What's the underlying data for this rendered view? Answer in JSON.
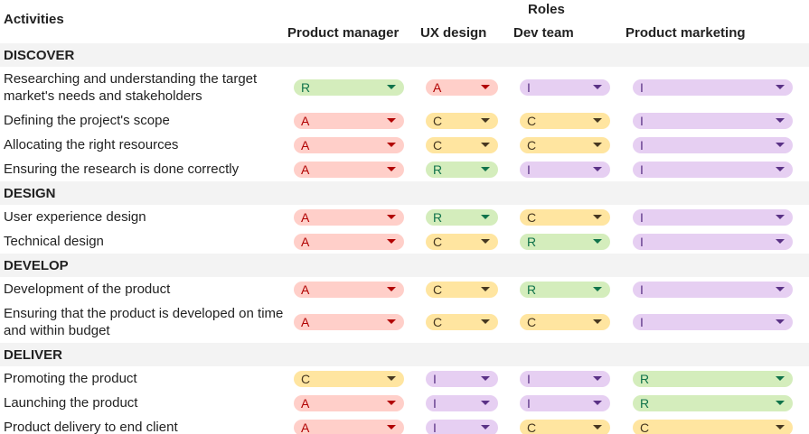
{
  "header": {
    "activities": "Activities",
    "roles": "Roles",
    "role_names": [
      "Product manager",
      "UX design",
      "Dev team",
      "Product marketing"
    ]
  },
  "chip_colors": {
    "R": {
      "bg": "#d4edbc",
      "fg": "#11734b"
    },
    "A": {
      "bg": "#ffcfc9",
      "fg": "#b10202"
    },
    "C": {
      "bg": "#ffe5a0",
      "fg": "#473821"
    },
    "I": {
      "bg": "#e6cff2",
      "fg": "#5a3286"
    }
  },
  "sections": [
    {
      "title": "DISCOVER",
      "rows": [
        {
          "activity": "Researching and understanding the target market's needs and stakeholders",
          "values": [
            "R",
            "A",
            "I",
            "I"
          ]
        },
        {
          "activity": "Defining the project's scope",
          "values": [
            "A",
            "C",
            "C",
            "I"
          ]
        },
        {
          "activity": "Allocating the right resources",
          "values": [
            "A",
            "C",
            "C",
            "I"
          ]
        },
        {
          "activity": "Ensuring the research is done correctly",
          "values": [
            "A",
            "R",
            "I",
            "I"
          ]
        }
      ]
    },
    {
      "title": "DESIGN",
      "rows": [
        {
          "activity": "User experience design",
          "values": [
            "A",
            "R",
            "C",
            "I"
          ]
        },
        {
          "activity": "Technical design",
          "values": [
            "A",
            "C",
            "R",
            "I"
          ]
        }
      ]
    },
    {
      "title": "DEVELOP",
      "rows": [
        {
          "activity": "Development of the product",
          "values": [
            "A",
            "C",
            "R",
            "I"
          ]
        },
        {
          "activity": "Ensuring that the product is developed on time and within budget",
          "values": [
            "A",
            "C",
            "C",
            "I"
          ]
        }
      ]
    },
    {
      "title": "DELIVER",
      "rows": [
        {
          "activity": "Promoting the product",
          "values": [
            "C",
            "I",
            "I",
            "R"
          ]
        },
        {
          "activity": "Launching the product",
          "values": [
            "A",
            "I",
            "I",
            "R"
          ]
        },
        {
          "activity": "Product delivery to end client",
          "values": [
            "A",
            "I",
            "C",
            "C"
          ]
        }
      ]
    }
  ]
}
